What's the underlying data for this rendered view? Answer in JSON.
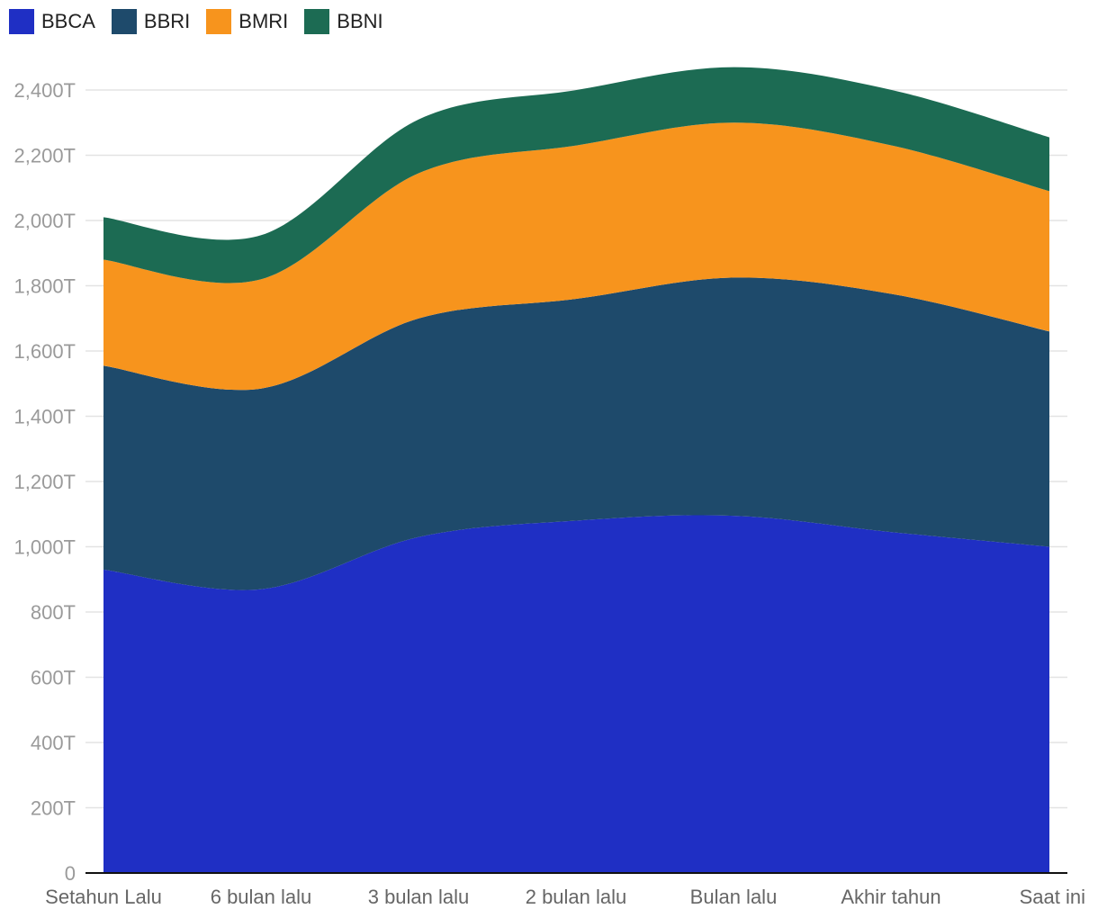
{
  "chart_data": {
    "type": "area",
    "stacked": true,
    "categories": [
      "Setahun Lalu",
      "6 bulan lalu",
      "3 bulan lalu",
      "2 bulan lalu",
      "Bulan lalu",
      "Akhir tahun",
      "Saat ini"
    ],
    "series": [
      {
        "name": "BBCA",
        "color": "#1f2fc4",
        "values": [
          930,
          870,
          1030,
          1080,
          1095,
          1045,
          1000
        ]
      },
      {
        "name": "BBRI",
        "color": "#1e4a6b",
        "values": [
          625,
          615,
          670,
          680,
          730,
          730,
          660
        ]
      },
      {
        "name": "BMRI",
        "color": "#f7941d",
        "values": [
          325,
          335,
          445,
          470,
          475,
          455,
          430
        ]
      },
      {
        "name": "BBNI",
        "color": "#1c6b53",
        "values": [
          130,
          135,
          165,
          170,
          170,
          170,
          165
        ]
      }
    ],
    "yticks": [
      "0",
      "200T",
      "400T",
      "600T",
      "800T",
      "1,000T",
      "1,200T",
      "1,400T",
      "1,600T",
      "1,800T",
      "2,000T",
      "2,200T",
      "2,400T"
    ],
    "ylim": [
      0,
      2400
    ],
    "grid": true,
    "legend_position": "top-left"
  }
}
